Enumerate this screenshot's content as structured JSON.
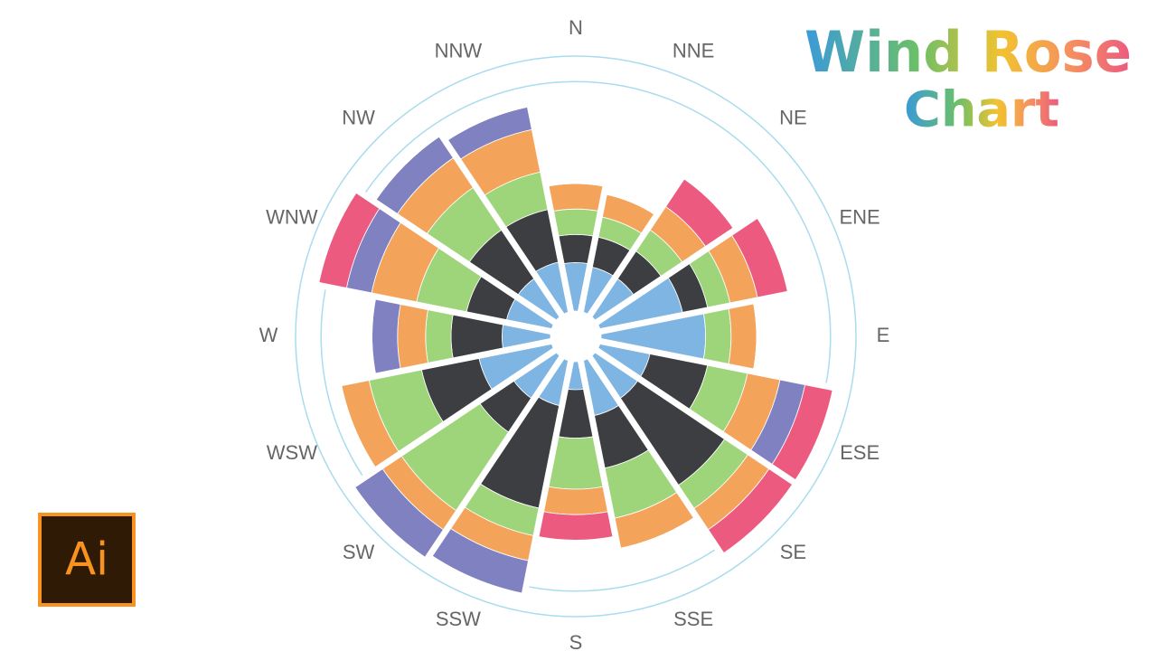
{
  "chart_data": {
    "type": "windrose",
    "title": [
      "Wind Rose",
      "Chart"
    ],
    "logo": "Ai",
    "categories": [
      "N",
      "NNE",
      "NE",
      "ENE",
      "E",
      "ESE",
      "SE",
      "SSE",
      "S",
      "SSW",
      "SW",
      "WSW",
      "W",
      "WNW",
      "NW",
      "NNW"
    ],
    "rlim": [
      0,
      100
    ],
    "rgrid": [
      90,
      100
    ],
    "series": [
      {
        "color": "#7fb5e3",
        "values": [
          19,
          18,
          18,
          33,
          41,
          20,
          20,
          22,
          11,
          18,
          20,
          29,
          19,
          18,
          18,
          20
        ]
      },
      {
        "color": "#3d3e42",
        "values": [
          11,
          12,
          13,
          10,
          0,
          23,
          41,
          21,
          19,
          41,
          16,
          23,
          20,
          16,
          23,
          21
        ]
      },
      {
        "color": "#9ed57b",
        "values": [
          10,
          8,
          10,
          9,
          10,
          16,
          11,
          20,
          20,
          11,
          37,
          21,
          10,
          20,
          20,
          15
        ]
      },
      {
        "color": "#f4a45a",
        "values": [
          10,
          9,
          11,
          11,
          10,
          13,
          10,
          12,
          10,
          10,
          9,
          11,
          11,
          18,
          14,
          17
        ]
      },
      {
        "color": "#8081c1",
        "values": [
          0,
          0,
          0,
          0,
          0,
          10,
          0,
          0,
          0,
          13,
          13,
          0,
          10,
          10,
          10,
          9
        ]
      },
      {
        "color": "#ec5a80",
        "values": [
          0,
          0,
          13,
          12,
          0,
          11,
          11,
          0,
          10,
          0,
          0,
          0,
          0,
          11,
          0,
          0
        ]
      }
    ]
  }
}
